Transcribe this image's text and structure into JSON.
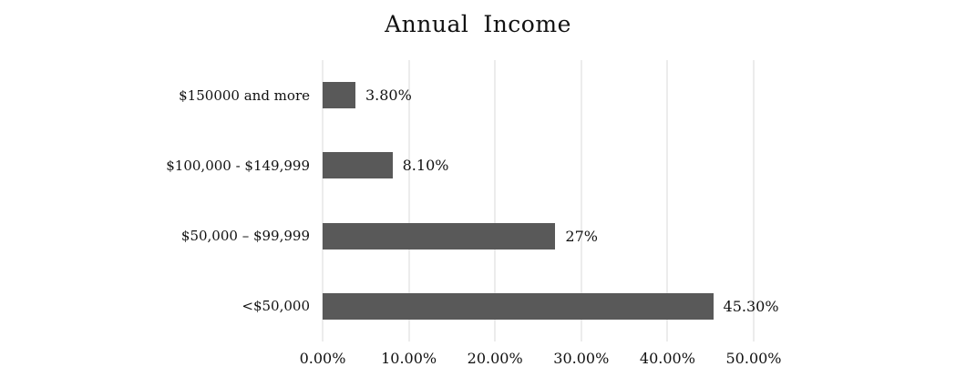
{
  "chart_data": {
    "type": "bar",
    "orientation": "horizontal",
    "title": "Annual Income",
    "categories": [
      "$150000 and more",
      "$100,000 - $149,999",
      "$50,000 – $99,999",
      "<$50,000"
    ],
    "values": [
      3.8,
      8.1,
      27,
      45.3
    ],
    "value_labels": [
      "3.80%",
      "8.10%",
      "27%",
      "45.30%"
    ],
    "x_ticks": [
      "0.00%",
      "10.00%",
      "20.00%",
      "30.00%",
      "40.00%",
      "50.00%"
    ],
    "x_tick_values": [
      0,
      10,
      20,
      30,
      40,
      50
    ],
    "xlim": [
      0,
      50
    ],
    "grid": "vertical-gridlines-only",
    "legend": "none",
    "colors": {
      "bar": "#595959",
      "gridline": "#d9d9d9",
      "text": "#111111",
      "background": "#ffffff"
    }
  }
}
